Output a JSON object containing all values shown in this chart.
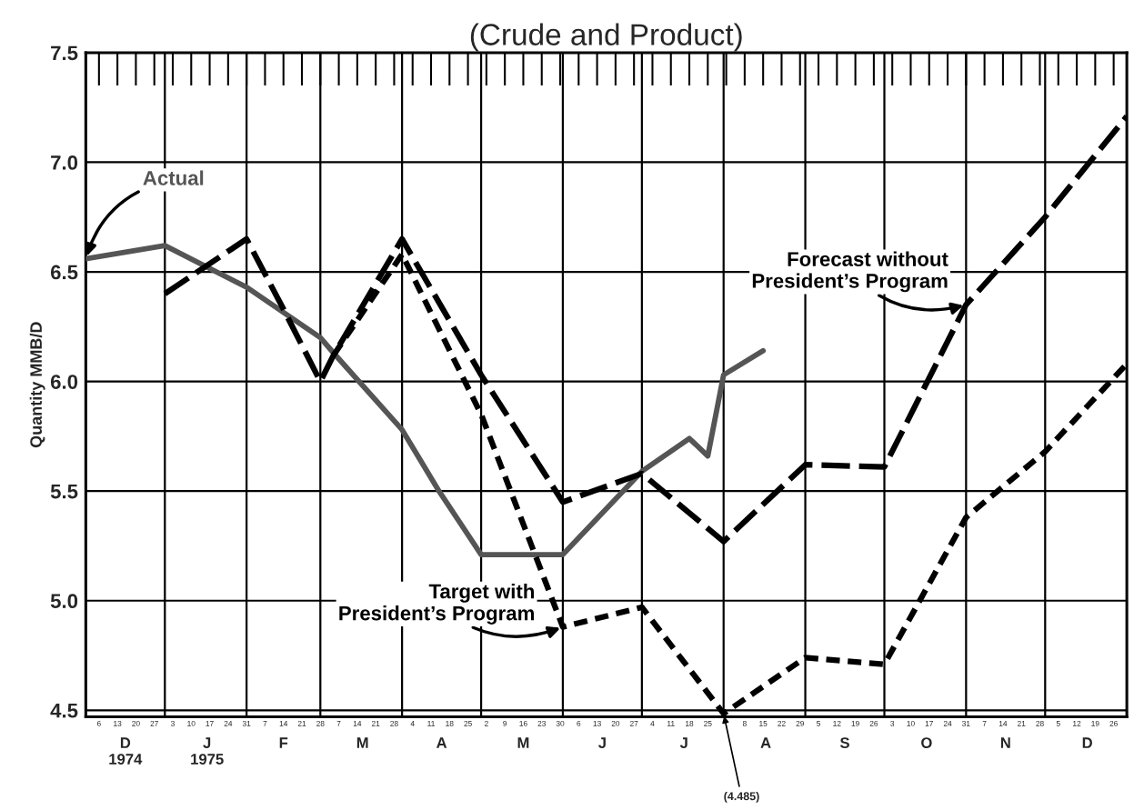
{
  "chart_data": {
    "type": "line",
    "title": "(Crude and Product)",
    "ylabel": "Quantity MMB/D",
    "xlim": [
      "1974-12-01",
      "1975-12-31"
    ],
    "ylim": [
      4.47,
      7.5
    ],
    "yticks": [
      {
        "value": 4.5,
        "label": "4.5"
      },
      {
        "value": 5.0,
        "label": "5.0"
      },
      {
        "value": 5.5,
        "label": "5.5"
      },
      {
        "value": 6.0,
        "label": "6.0"
      },
      {
        "value": 6.5,
        "label": "6.5"
      },
      {
        "value": 7.0,
        "label": "7.0"
      },
      {
        "value": 7.5,
        "label": "7.5"
      }
    ],
    "xticks": [
      {
        "value": "1974-12-06",
        "label": "6"
      },
      {
        "value": "1974-12-13",
        "label": "13"
      },
      {
        "value": "1974-12-20",
        "label": "20"
      },
      {
        "value": "1974-12-27",
        "label": "27"
      },
      {
        "value": "1975-01-03",
        "label": "3"
      },
      {
        "value": "1975-01-10",
        "label": "10"
      },
      {
        "value": "1975-01-17",
        "label": "17"
      },
      {
        "value": "1975-01-24",
        "label": "24"
      },
      {
        "value": "1975-01-31",
        "label": "31"
      },
      {
        "value": "1975-02-07",
        "label": "7"
      },
      {
        "value": "1975-02-14",
        "label": "14"
      },
      {
        "value": "1975-02-21",
        "label": "21"
      },
      {
        "value": "1975-02-28",
        "label": "28"
      },
      {
        "value": "1975-03-07",
        "label": "7"
      },
      {
        "value": "1975-03-14",
        "label": "14"
      },
      {
        "value": "1975-03-21",
        "label": "21"
      },
      {
        "value": "1975-03-28",
        "label": "28"
      },
      {
        "value": "1975-04-04",
        "label": "4"
      },
      {
        "value": "1975-04-11",
        "label": "11"
      },
      {
        "value": "1975-04-18",
        "label": "18"
      },
      {
        "value": "1975-04-25",
        "label": "25"
      },
      {
        "value": "1975-05-02",
        "label": "2"
      },
      {
        "value": "1975-05-09",
        "label": "9"
      },
      {
        "value": "1975-05-16",
        "label": "16"
      },
      {
        "value": "1975-05-23",
        "label": "23"
      },
      {
        "value": "1975-05-30",
        "label": "30"
      },
      {
        "value": "1975-06-06",
        "label": "6"
      },
      {
        "value": "1975-06-13",
        "label": "13"
      },
      {
        "value": "1975-06-20",
        "label": "20"
      },
      {
        "value": "1975-06-27",
        "label": "27"
      },
      {
        "value": "1975-07-04",
        "label": "4"
      },
      {
        "value": "1975-07-11",
        "label": "11"
      },
      {
        "value": "1975-07-18",
        "label": "18"
      },
      {
        "value": "1975-07-25",
        "label": "25"
      },
      {
        "value": "1975-08-01",
        "label": null
      },
      {
        "value": "1975-08-08",
        "label": "8"
      },
      {
        "value": "1975-08-15",
        "label": "15"
      },
      {
        "value": "1975-08-22",
        "label": "22"
      },
      {
        "value": "1975-08-29",
        "label": "29"
      },
      {
        "value": "1975-09-05",
        "label": "5"
      },
      {
        "value": "1975-09-12",
        "label": "12"
      },
      {
        "value": "1975-09-19",
        "label": "19"
      },
      {
        "value": "1975-09-26",
        "label": "26"
      },
      {
        "value": "1975-10-03",
        "label": "3"
      },
      {
        "value": "1975-10-10",
        "label": "10"
      },
      {
        "value": "1975-10-17",
        "label": "17"
      },
      {
        "value": "1975-10-24",
        "label": "24"
      },
      {
        "value": "1975-10-31",
        "label": "31"
      },
      {
        "value": "1975-11-07",
        "label": "7"
      },
      {
        "value": "1975-11-14",
        "label": "14"
      },
      {
        "value": "1975-11-21",
        "label": "21"
      },
      {
        "value": "1975-11-28",
        "label": "28"
      },
      {
        "value": "1975-12-05",
        "label": "5"
      },
      {
        "value": "1975-12-12",
        "label": "12"
      },
      {
        "value": "1975-12-19",
        "label": "19"
      },
      {
        "value": "1975-12-26",
        "label": "26"
      }
    ],
    "x2lim": [
      "1974-12-01",
      "1975-12-31"
    ],
    "x2ticks": [
      {
        "value": "1974-12-16",
        "label": "D\n1974"
      },
      {
        "value": "1975-01-16",
        "label": "J\n1975"
      },
      {
        "value": "1975-02-14",
        "label": "F"
      },
      {
        "value": "1975-03-16",
        "label": "M"
      },
      {
        "value": "1975-04-15",
        "label": "A"
      },
      {
        "value": "1975-05-16",
        "label": "M"
      },
      {
        "value": "1975-06-15",
        "label": "J"
      },
      {
        "value": "1975-07-16",
        "label": "J"
      },
      {
        "value": "1975-08-16",
        "label": "A"
      },
      {
        "value": "1975-09-15",
        "label": "S"
      },
      {
        "value": "1975-10-16",
        "label": "O"
      },
      {
        "value": "1975-11-15",
        "label": "N"
      },
      {
        "value": "1975-12-16",
        "label": "D"
      }
    ],
    "grid": "y",
    "legend": false,
    "marker": "none",
    "ref_lines": [
      {
        "axis": "x",
        "value": "1974-12-31",
        "color": "#000000"
      },
      {
        "axis": "x",
        "value": "1975-01-31",
        "color": "#000000"
      },
      {
        "axis": "x",
        "value": "1975-02-28",
        "color": "#000000"
      },
      {
        "axis": "x",
        "value": "1975-03-31",
        "color": "#000000"
      },
      {
        "axis": "x",
        "value": "1975-04-30",
        "color": "#000000"
      },
      {
        "axis": "x",
        "value": "1975-05-31",
        "color": "#000000"
      },
      {
        "axis": "x",
        "value": "1975-06-30",
        "color": "#000000"
      },
      {
        "axis": "x",
        "value": "1975-07-31",
        "color": "#000000"
      },
      {
        "axis": "x",
        "value": "1975-08-31",
        "color": "#000000"
      },
      {
        "axis": "x",
        "value": "1975-09-30",
        "color": "#000000"
      },
      {
        "axis": "x",
        "value": "1975-10-31",
        "color": "#000000"
      },
      {
        "axis": "x",
        "value": "1975-11-30",
        "color": "#000000"
      }
    ],
    "annotations": [
      {
        "text": "(4.485)",
        "x": "1975-07-31",
        "y": 4.485
      }
    ],
    "series": [
      {
        "name": "Actual",
        "color": "#555555",
        "line_style": "solid",
        "x": [
          "1974-12-01",
          "1974-12-31",
          "1975-01-31",
          "1975-02-28",
          "1975-03-05",
          "1975-03-31",
          "1975-04-14",
          "1975-04-30",
          "1975-05-31",
          "1975-06-30",
          "1975-07-18",
          "1975-07-25",
          "1975-07-31",
          "1975-08-15"
        ],
        "values": [
          6.56,
          6.62,
          6.43,
          6.2,
          6.13,
          5.78,
          5.5,
          5.21,
          5.21,
          5.59,
          5.74,
          5.66,
          6.03,
          6.14
        ]
      },
      {
        "name": "Forecast without\nPresident’s Program",
        "color": "#000000",
        "line_style": "dashed",
        "x": [
          "1974-12-31",
          "1975-01-31",
          "1975-02-14",
          "1975-02-28",
          "1975-03-05",
          "1975-03-31",
          "1975-04-30",
          "1975-05-31",
          "1975-06-30",
          "1975-07-31",
          "1975-08-31",
          "1975-09-30",
          "1975-10-31",
          "1975-11-30",
          "1975-12-31"
        ],
        "values": [
          6.4,
          6.65,
          6.33,
          6.0,
          6.12,
          6.65,
          6.03,
          5.45,
          5.58,
          5.27,
          5.62,
          5.61,
          6.35,
          6.75,
          7.21
        ]
      },
      {
        "name": "Target with\nPresident’s Program",
        "color": "#000000",
        "line_style": "dashed",
        "x": [
          "1975-03-05",
          "1975-03-31",
          "1975-04-30",
          "1975-05-31",
          "1975-06-30",
          "1975-07-31",
          "1975-08-31",
          "1975-09-30",
          "1975-10-31",
          "1975-11-30",
          "1975-12-31"
        ],
        "values": [
          6.12,
          6.58,
          5.85,
          4.88,
          4.97,
          4.485,
          4.74,
          4.71,
          5.38,
          5.68,
          6.08
        ]
      }
    ]
  }
}
